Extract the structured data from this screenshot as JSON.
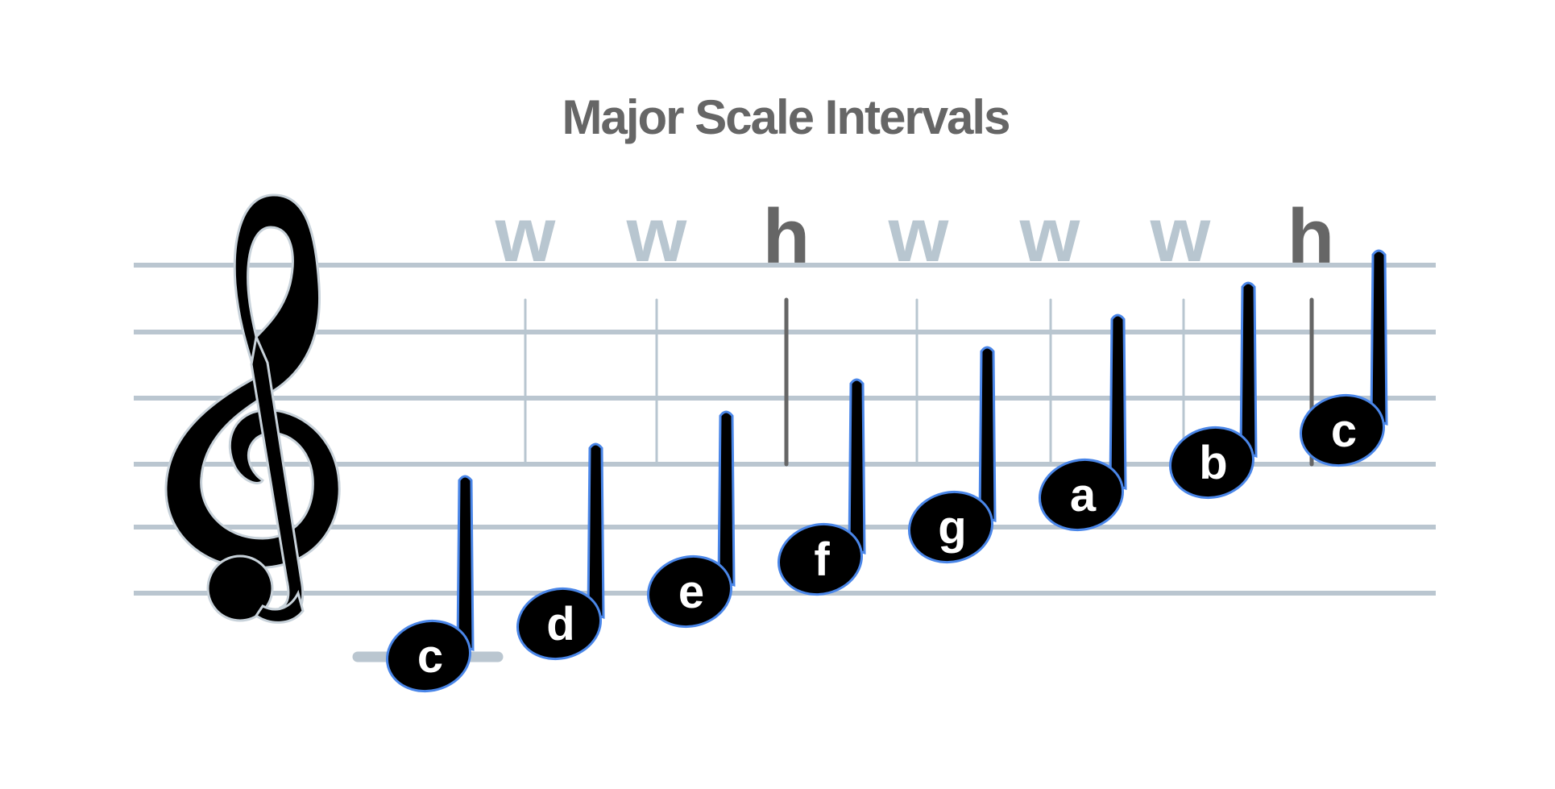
{
  "title": "Major Scale Intervals",
  "colors": {
    "title": "#666666",
    "staff_line": "#bac6d0",
    "whole_step": "#b8c6d0",
    "half_step": "#666666",
    "note_fill": "#000000",
    "note_outline": "#4a86e8",
    "note_label": "#ffffff",
    "clef": "#000000"
  },
  "clef": {
    "name": "treble-clef-icon"
  },
  "notes": [
    {
      "label": "c"
    },
    {
      "label": "d"
    },
    {
      "label": "e"
    },
    {
      "label": "f"
    },
    {
      "label": "g"
    },
    {
      "label": "a"
    },
    {
      "label": "b"
    },
    {
      "label": "c"
    }
  ],
  "intervals": [
    {
      "label": "w",
      "type": "whole"
    },
    {
      "label": "w",
      "type": "whole"
    },
    {
      "label": "h",
      "type": "half"
    },
    {
      "label": "w",
      "type": "whole"
    },
    {
      "label": "w",
      "type": "whole"
    },
    {
      "label": "w",
      "type": "whole"
    },
    {
      "label": "h",
      "type": "half"
    }
  ]
}
